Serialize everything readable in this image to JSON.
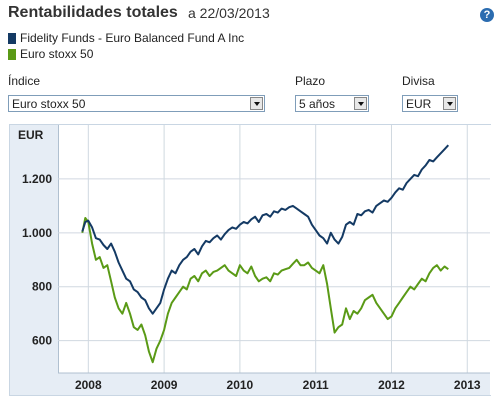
{
  "header": {
    "title": "Rentabilidades totales",
    "subtitle": "a  22/03/2013",
    "help_icon": "?"
  },
  "legend": [
    {
      "label": "Fidelity Funds - Euro Balanced Fund A Inc",
      "color": "#143a64"
    },
    {
      "label": "Euro stoxx 50",
      "color": "#5a9a16"
    }
  ],
  "controls": {
    "index_label": "Índice",
    "index_value": "Euro stoxx 50",
    "term_label": "Plazo",
    "term_value": "5 años",
    "currency_label": "Divisa",
    "currency_value": "EUR"
  },
  "chart_data": {
    "type": "line",
    "ylabel": "EUR",
    "ylim": [
      480,
      1400
    ],
    "yticks": [
      600,
      800,
      "1.000",
      "1.200"
    ],
    "ytick_values": [
      600,
      800,
      1000,
      1200
    ],
    "xlim": [
      2007.6,
      2013.3
    ],
    "xticks": [
      "2008",
      "2009",
      "2010",
      "2011",
      "2012",
      "2013"
    ],
    "xtick_values": [
      2008,
      2009,
      2010,
      2011,
      2012,
      2013
    ],
    "grid": true,
    "series": [
      {
        "name": "Fidelity Funds - Euro Balanced Fund A Inc",
        "color": "#143a64",
        "x": [
          2007.92,
          2007.96,
          2008.0,
          2008.05,
          2008.1,
          2008.15,
          2008.2,
          2008.25,
          2008.3,
          2008.35,
          2008.4,
          2008.45,
          2008.5,
          2008.55,
          2008.6,
          2008.65,
          2008.7,
          2008.75,
          2008.8,
          2008.85,
          2008.9,
          2008.95,
          2009.0,
          2009.05,
          2009.1,
          2009.15,
          2009.2,
          2009.25,
          2009.3,
          2009.35,
          2009.4,
          2009.45,
          2009.5,
          2009.55,
          2009.6,
          2009.65,
          2009.7,
          2009.75,
          2009.8,
          2009.85,
          2009.9,
          2009.95,
          2010.0,
          2010.05,
          2010.1,
          2010.15,
          2010.2,
          2010.25,
          2010.3,
          2010.35,
          2010.4,
          2010.45,
          2010.5,
          2010.55,
          2010.6,
          2010.65,
          2010.7,
          2010.75,
          2010.8,
          2010.85,
          2010.9,
          2010.95,
          2011.0,
          2011.05,
          2011.1,
          2011.15,
          2011.2,
          2011.25,
          2011.3,
          2011.35,
          2011.4,
          2011.45,
          2011.5,
          2011.55,
          2011.6,
          2011.65,
          2011.7,
          2011.75,
          2011.8,
          2011.85,
          2011.9,
          2011.95,
          2012.0,
          2012.05,
          2012.1,
          2012.15,
          2012.2,
          2012.25,
          2012.3,
          2012.35,
          2012.4,
          2012.45,
          2012.5,
          2012.55,
          2012.6,
          2012.65,
          2012.7,
          2012.75
        ],
        "values": [
          1005,
          1040,
          1045,
          1020,
          980,
          975,
          955,
          940,
          960,
          930,
          890,
          860,
          830,
          820,
          790,
          780,
          760,
          750,
          720,
          700,
          720,
          740,
          790,
          830,
          860,
          850,
          880,
          900,
          910,
          930,
          940,
          920,
          950,
          970,
          965,
          980,
          990,
          975,
          995,
          1010,
          1020,
          1015,
          1030,
          1040,
          1035,
          1050,
          1060,
          1040,
          1065,
          1070,
          1060,
          1080,
          1075,
          1090,
          1085,
          1095,
          1100,
          1090,
          1080,
          1070,
          1060,
          1030,
          1010,
          990,
          980,
          960,
          1000,
          975,
          960,
          985,
          1030,
          1040,
          1030,
          1070,
          1065,
          1080,
          1085,
          1075,
          1100,
          1110,
          1120,
          1115,
          1130,
          1150,
          1165,
          1160,
          1185,
          1200,
          1215,
          1210,
          1235,
          1250,
          1270,
          1265,
          1280,
          1295,
          1310,
          1325
        ]
      },
      {
        "name": "Euro stoxx 50",
        "color": "#5a9a16",
        "x": [
          2007.92,
          2007.96,
          2008.0,
          2008.05,
          2008.1,
          2008.15,
          2008.2,
          2008.25,
          2008.3,
          2008.35,
          2008.4,
          2008.45,
          2008.5,
          2008.55,
          2008.6,
          2008.65,
          2008.7,
          2008.75,
          2008.8,
          2008.85,
          2008.9,
          2008.95,
          2009.0,
          2009.05,
          2009.1,
          2009.15,
          2009.2,
          2009.25,
          2009.3,
          2009.35,
          2009.4,
          2009.45,
          2009.5,
          2009.55,
          2009.6,
          2009.65,
          2009.7,
          2009.75,
          2009.8,
          2009.85,
          2009.9,
          2009.95,
          2010.0,
          2010.05,
          2010.1,
          2010.15,
          2010.2,
          2010.25,
          2010.3,
          2010.35,
          2010.4,
          2010.45,
          2010.5,
          2010.55,
          2010.6,
          2010.65,
          2010.7,
          2010.75,
          2010.8,
          2010.85,
          2010.9,
          2010.95,
          2011.0,
          2011.05,
          2011.1,
          2011.15,
          2011.2,
          2011.25,
          2011.3,
          2011.35,
          2011.4,
          2011.45,
          2011.5,
          2011.55,
          2011.6,
          2011.65,
          2011.7,
          2011.75,
          2011.8,
          2011.85,
          2011.9,
          2011.95,
          2012.0,
          2012.05,
          2012.1,
          2012.15,
          2012.2,
          2012.25,
          2012.3,
          2012.35,
          2012.4,
          2012.45,
          2012.5,
          2012.55,
          2012.6,
          2012.65,
          2012.7,
          2012.75
        ],
        "values": [
          1000,
          1055,
          1040,
          960,
          900,
          910,
          870,
          880,
          820,
          760,
          720,
          700,
          740,
          700,
          650,
          640,
          660,
          620,
          560,
          520,
          570,
          600,
          640,
          700,
          740,
          760,
          780,
          800,
          790,
          830,
          840,
          820,
          850,
          860,
          840,
          855,
          860,
          870,
          880,
          860,
          850,
          840,
          880,
          860,
          850,
          875,
          840,
          820,
          830,
          835,
          820,
          850,
          845,
          860,
          865,
          870,
          885,
          900,
          880,
          880,
          890,
          870,
          860,
          850,
          880,
          810,
          720,
          630,
          650,
          660,
          720,
          680,
          710,
          700,
          720,
          750,
          760,
          770,
          740,
          720,
          700,
          680,
          690,
          720,
          740,
          760,
          780,
          800,
          790,
          810,
          830,
          820,
          850,
          870,
          880,
          860,
          875,
          865
        ]
      }
    ]
  }
}
